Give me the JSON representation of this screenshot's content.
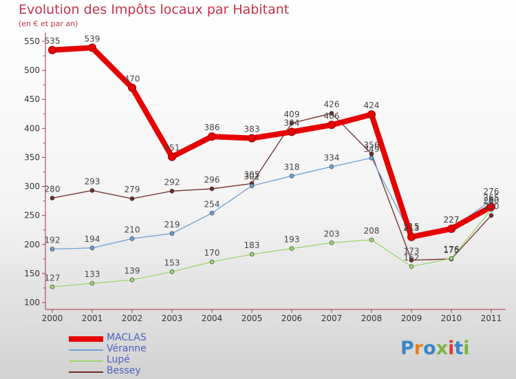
{
  "header": {
    "title": "Evolution des Impôts locaux par Habitant",
    "subtitle": "(en € et par an)"
  },
  "logo": {
    "text": "Proxiti",
    "colors": [
      "#3a86c8",
      "#e67e22",
      "#3a86c8",
      "#7cb342",
      "#e53935",
      "#3a86c8",
      "#7cb342"
    ]
  },
  "chart_data": {
    "type": "line",
    "title": "Evolution des Impôts locaux par Habitant",
    "subtitle": "(en € et par an)",
    "xlabel": "",
    "ylabel": "",
    "categories": [
      "2000",
      "2001",
      "2002",
      "2003",
      "2004",
      "2005",
      "2006",
      "2007",
      "2008",
      "2009",
      "2010",
      "2011"
    ],
    "ylim": [
      100,
      550
    ],
    "yticks": [
      100,
      150,
      200,
      250,
      300,
      350,
      400,
      450,
      500,
      550
    ],
    "grid": false,
    "legend_position": "bottom-left",
    "series": [
      {
        "name": "MACLAS",
        "color": "#e60000",
        "values": [
          535,
          539,
          470,
          351,
          386,
          383,
          394,
          406,
          424,
          213,
          227,
          265
        ]
      },
      {
        "name": "Véranne",
        "color": "#6a9fd4",
        "values": [
          192,
          194,
          210,
          219,
          254,
          301,
          318,
          334,
          349,
          215,
          227,
          276
        ]
      },
      {
        "name": "Lupé",
        "color": "#9bd46a",
        "values": [
          127,
          133,
          139,
          153,
          170,
          183,
          193,
          203,
          208,
          162,
          176,
          260
        ]
      },
      {
        "name": "Bessey",
        "color": "#6e2a2a",
        "values": [
          280,
          293,
          279,
          292,
          296,
          305,
          409,
          426,
          356,
          173,
          175,
          250
        ]
      }
    ],
    "point_labels": {
      "MACLAS": [
        "535",
        "539",
        "470",
        "351",
        "386",
        "383",
        "394",
        "406",
        "424",
        "213",
        "227",
        "265"
      ],
      "Véranne": [
        "192",
        "194",
        "210",
        "219",
        "254",
        "301",
        "318",
        "334",
        "349",
        "215",
        "227",
        "276"
      ],
      "Lupé": [
        "127",
        "133",
        "139",
        "153",
        "170",
        "183",
        "193",
        "203",
        "208",
        "162",
        "176",
        "260"
      ],
      "Bessey": [
        "280",
        "293",
        "279",
        "292",
        "296",
        "305",
        "409",
        "426",
        "356",
        "173",
        "175",
        "250"
      ]
    }
  }
}
